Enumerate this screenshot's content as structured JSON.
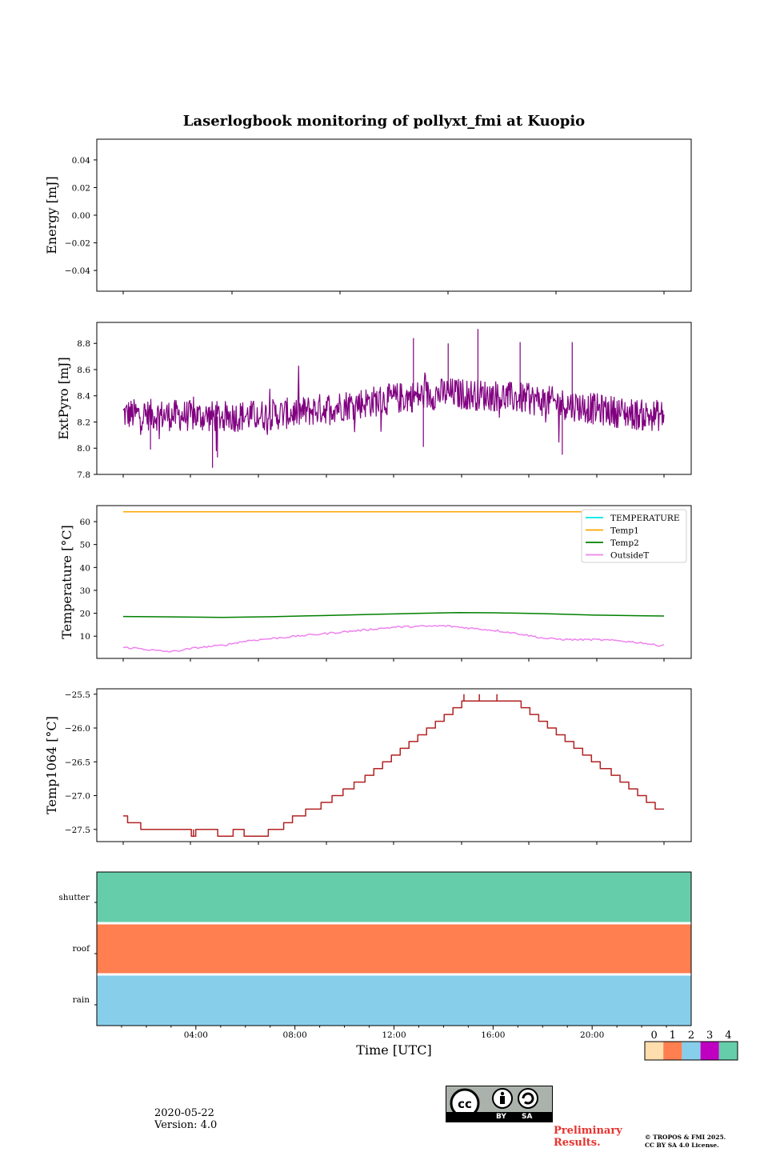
{
  "title": "Laserlogbook monitoring of pollyxt_fmi at Kuopio",
  "footer": {
    "date": "2020-05-22",
    "version": "Version: 4.0",
    "preliminary_line1": "Preliminary",
    "preliminary_line2": "Results.",
    "copyright_line1": "© TROPOS & FMI 2025.",
    "copyright_line2": "CC BY SA 4.0 License.",
    "cc_by": "BY",
    "cc_sa": "SA"
  },
  "chart_data": [
    {
      "id": "energy",
      "type": "line",
      "ylabel": "Energy [mJ]",
      "ylim": [
        -0.055,
        0.055
      ],
      "yticks": [
        0.04,
        0.02,
        0.0,
        -0.02,
        -0.04
      ],
      "ytick_labels": [
        "0.04",
        "0.02",
        "0.00",
        "−0.02",
        "−0.04"
      ],
      "series": []
    },
    {
      "id": "extpyro",
      "type": "line",
      "ylabel": "ExtPyro [mJ]",
      "ylim": [
        7.8,
        8.96
      ],
      "yticks": [
        8.8,
        8.6,
        8.4,
        8.2,
        8.0,
        7.8
      ],
      "ytick_labels": [
        "8.8",
        "8.6",
        "8.4",
        "8.2",
        "8.0",
        "7.8"
      ],
      "series": [
        {
          "name": "ExtPyro",
          "color": "#800080",
          "noisy": true,
          "noise_amplitude": 0.12,
          "points": [
            [
              1.0,
              8.26
            ],
            [
              3.0,
              8.25
            ],
            [
              5.0,
              8.24
            ],
            [
              6.5,
              8.25
            ],
            [
              8.0,
              8.27
            ],
            [
              10.0,
              8.33
            ],
            [
              12.0,
              8.38
            ],
            [
              14.0,
              8.42
            ],
            [
              16.0,
              8.4
            ],
            [
              18.0,
              8.36
            ],
            [
              20.0,
              8.3
            ],
            [
              22.0,
              8.25
            ]
          ],
          "spikes": [
            [
              4.6,
              7.85
            ],
            [
              4.8,
              7.93
            ],
            [
              2.1,
              7.99
            ],
            [
              15.3,
              8.91
            ],
            [
              14.1,
              8.8
            ],
            [
              12.7,
              8.84
            ],
            [
              19.1,
              8.81
            ],
            [
              18.7,
              7.95
            ],
            [
              17.0,
              8.81
            ],
            [
              13.1,
              8.01
            ]
          ]
        }
      ]
    },
    {
      "id": "temperature",
      "type": "line",
      "ylabel": "Temperature [°C]",
      "ylim": [
        0.3,
        67
      ],
      "yticks": [
        60,
        50,
        40,
        30,
        20,
        10
      ],
      "ytick_labels": [
        "60",
        "50",
        "40",
        "30",
        "20",
        "10"
      ],
      "legend": "top-right",
      "series": [
        {
          "name": "TEMPERATURE",
          "color": "#00e5e5",
          "points": []
        },
        {
          "name": "Temp1",
          "color": "#ffa500",
          "points": [
            [
              1.0,
              64.3
            ],
            [
              22.8,
              64.3
            ]
          ]
        },
        {
          "name": "Temp2",
          "color": "#008000",
          "points": [
            [
              1.0,
              18.6
            ],
            [
              3.0,
              18.4
            ],
            [
              5.0,
              18.2
            ],
            [
              7.0,
              18.5
            ],
            [
              9.0,
              19.0
            ],
            [
              11.0,
              19.5
            ],
            [
              13.0,
              20.0
            ],
            [
              14.5,
              20.3
            ],
            [
              16.0,
              20.2
            ],
            [
              18.0,
              19.8
            ],
            [
              20.0,
              19.2
            ],
            [
              22.0,
              18.9
            ],
            [
              22.8,
              18.8
            ]
          ]
        },
        {
          "name": "OutsideT",
          "color": "#ee82ee",
          "noisy": true,
          "noise_amplitude": 0.4,
          "points": [
            [
              1.0,
              5.0
            ],
            [
              1.5,
              4.8
            ],
            [
              2.5,
              3.5
            ],
            [
              3.0,
              3.3
            ],
            [
              4.0,
              5.0
            ],
            [
              5.0,
              6.0
            ],
            [
              6.0,
              8.0
            ],
            [
              7.0,
              9.0
            ],
            [
              8.0,
              10.0
            ],
            [
              9.0,
              11.0
            ],
            [
              10.0,
              12.0
            ],
            [
              11.0,
              13.0
            ],
            [
              12.0,
              14.0
            ],
            [
              13.0,
              14.3
            ],
            [
              14.0,
              14.5
            ],
            [
              15.0,
              13.5
            ],
            [
              16.0,
              12.5
            ],
            [
              17.0,
              11.0
            ],
            [
              18.0,
              9.0
            ],
            [
              19.0,
              8.5
            ],
            [
              20.0,
              8.5
            ],
            [
              21.0,
              8.0
            ],
            [
              22.0,
              7.0
            ],
            [
              22.5,
              6.0
            ],
            [
              22.8,
              6.2
            ]
          ]
        }
      ]
    },
    {
      "id": "temp1064",
      "type": "line",
      "ylabel": "Temp1064 [°C]",
      "ylim": [
        -27.68,
        -25.42
      ],
      "yticks": [
        -25.5,
        -26.0,
        -26.5,
        -27.0,
        -27.5
      ],
      "ytick_labels": [
        "−25.5",
        "−26.0",
        "−26.5",
        "−27.0",
        "−27.5"
      ],
      "series": [
        {
          "name": "Temp1064",
          "color": "#b22222",
          "step": true,
          "points": [
            [
              1.0,
              -27.3
            ],
            [
              1.2,
              -27.4
            ],
            [
              1.8,
              -27.5
            ],
            [
              4.0,
              -27.5
            ],
            [
              4.1,
              -27.6
            ],
            [
              4.3,
              -27.5
            ],
            [
              5.0,
              -27.5
            ],
            [
              5.3,
              -27.6
            ],
            [
              6.0,
              -27.5
            ],
            [
              6.5,
              -27.6
            ],
            [
              7.6,
              -27.5
            ],
            [
              8.3,
              -27.4
            ],
            [
              8.7,
              -27.3
            ],
            [
              9.3,
              -27.2
            ],
            [
              10.0,
              -27.1
            ],
            [
              10.5,
              -27.0
            ],
            [
              11.0,
              -26.9
            ],
            [
              11.5,
              -26.8
            ],
            [
              12.0,
              -26.7
            ],
            [
              12.4,
              -26.6
            ],
            [
              12.8,
              -26.5
            ],
            [
              13.2,
              -26.4
            ],
            [
              13.6,
              -26.3
            ],
            [
              14.0,
              -26.2
            ],
            [
              14.4,
              -26.1
            ],
            [
              14.8,
              -26.0
            ],
            [
              15.2,
              -25.9
            ],
            [
              15.6,
              -25.8
            ],
            [
              16.0,
              -25.7
            ],
            [
              16.4,
              -25.6
            ],
            [
              18.8,
              -25.6
            ],
            [
              19.1,
              -25.7
            ],
            [
              19.5,
              -25.8
            ],
            [
              19.9,
              -25.9
            ],
            [
              20.3,
              -26.0
            ],
            [
              20.7,
              -26.1
            ],
            [
              21.1,
              -26.2
            ],
            [
              21.5,
              -26.3
            ],
            [
              21.9,
              -26.4
            ],
            [
              22.3,
              -26.5
            ],
            [
              22.7,
              -26.6
            ],
            [
              23.2,
              -26.7
            ],
            [
              23.6,
              -26.8
            ],
            [
              24.0,
              -26.9
            ],
            [
              24.4,
              -27.0
            ],
            [
              24.8,
              -27.1
            ],
            [
              25.2,
              -27.2
            ],
            [
              25.6,
              -27.2
            ]
          ]
        }
      ],
      "x_mapping_note": "x here is a parameter spanning the panel's time axis"
    },
    {
      "id": "status",
      "type": "heatmap",
      "rows": [
        "shutter",
        "roof",
        "rain"
      ],
      "row_values": [
        4,
        1,
        2
      ],
      "xlabel": "Time [UTC]",
      "xticks": [
        4,
        8,
        12,
        16,
        20
      ],
      "xtick_labels": [
        "04:00",
        "08:00",
        "12:00",
        "16:00",
        "20:00"
      ],
      "xlim": [
        0,
        24
      ],
      "colorbar": {
        "ticks": [
          "0",
          "1",
          "2",
          "3",
          "4"
        ],
        "colors": [
          "#ffdead",
          "#ff7f50",
          "#87ceeb",
          "#c000c0",
          "#66cdaa"
        ]
      }
    }
  ]
}
